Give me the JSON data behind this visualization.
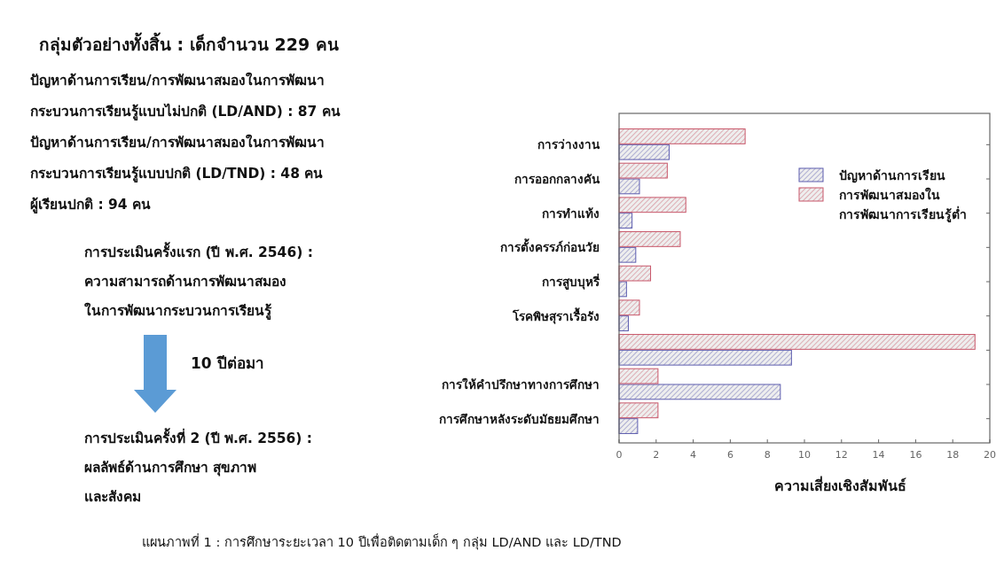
{
  "chart_data": [
    {
      "type": "other",
      "title": "กลุ่มตัวอย่างทั้งสิ้น : เด็กจำนวน 229 คน",
      "annotations": [
        "ปัญหาด้านการเรียน/การพัฒนาสมองในการพัฒนา\nกระบวนการเรียนรู้แบบไม่ปกติ (LD/AND) : 87 คน",
        "ปัญหาด้านการเรียน/การพัฒนาสมองในการพัฒนา\nกระบวนการเรียนรู้แบบปกติ (LD/TND) : 48 คน",
        "ผู้เรียนปกติ : 94 คน",
        "การประเมินครั้งแรก (ปี พ.ศ. 2546) :\nความสามารถด้านการพัฒนาสมอง\nในการพัฒนากระบวนการเรียนรู้",
        "10 ปีต่อมา",
        "การประเมินครั้งที่ 2 (ปี พ.ศ. 2556) :\nผลลัพธ์ด้านการศึกษา สุขภาพ\nและสังคม",
        "แผนภาพที่ 1 : การศึกษาระยะเวลา 10 ปีเพื่อติดตามเด็ก ๆ กลุ่ม LD/AND และ LD/TND"
      ]
    },
    {
      "type": "bar",
      "orientation": "horizontal",
      "xlabel": "ความเสี่ยงเชิงสัมพันธ์",
      "categories": [
        "การว่างงาน",
        "การออกกลางคัน",
        "การทำแท้ง",
        "การตั้งครรภ์ก่อนวัย",
        "การสูบบุหรี่",
        "โรคพิษสุราเรื้อรัง",
        null,
        "การให้คำปรึกษาทางการศึกษา",
        "การศึกษาหลังระดับมัธยมศึกษา"
      ],
      "series": [
        {
          "name": "ปัญหาด้านการเรียน",
          "color": "#5c5cae",
          "values": [
            2.7,
            1.1,
            0.7,
            0.9,
            0.4,
            0.5,
            9.3,
            8.7,
            1.0
          ]
        },
        {
          "name": "การพัฒนาสมองใน\nการพัฒนาการเรียนรู้ต่ำ",
          "color": "#c8576a",
          "values": [
            6.8,
            2.6,
            3.6,
            3.3,
            1.7,
            1.1,
            19.2,
            2.1,
            2.1
          ]
        }
      ],
      "xlim": [
        0,
        20
      ],
      "xticks": [
        0,
        2,
        4,
        6,
        8,
        10,
        12,
        14,
        16,
        18,
        20
      ],
      "legend": "top right",
      "grid": false
    }
  ]
}
